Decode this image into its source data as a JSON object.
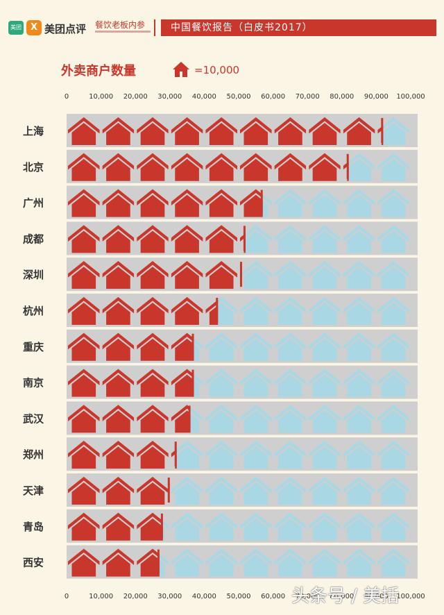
{
  "header": {
    "logo_badge": "美团",
    "logo_badge2": "X",
    "brand": "美团点评",
    "sub_brand": "餐饮老板内参",
    "report_title": "中国餐饮报告（白皮书2017）"
  },
  "legend": {
    "icon": "house-icon",
    "text": "=10,000"
  },
  "watermark": "头条号 / 美括",
  "colors": {
    "filled": "#c9372c",
    "empty": "#a9d8e4",
    "track": "#cfcfcf",
    "axis_text": "#333333"
  },
  "chart_data": {
    "type": "bar",
    "title": "外卖商户数量",
    "unit_per_icon": 10000,
    "xlim": [
      0,
      100000
    ],
    "xticks": [
      "0",
      "10,000",
      "20,000",
      "30,000",
      "40,000",
      "50,000",
      "60,000",
      "70,000",
      "80,000",
      "90,000",
      "100,000"
    ],
    "categories": [
      "上海",
      "北京",
      "广州",
      "成都",
      "深圳",
      "杭州",
      "重庆",
      "南京",
      "武汉",
      "郑州",
      "天津",
      "青岛",
      "西安"
    ],
    "values": [
      92000,
      82000,
      57000,
      52000,
      51000,
      44000,
      37000,
      37000,
      36000,
      32000,
      30000,
      28000,
      27000
    ]
  }
}
